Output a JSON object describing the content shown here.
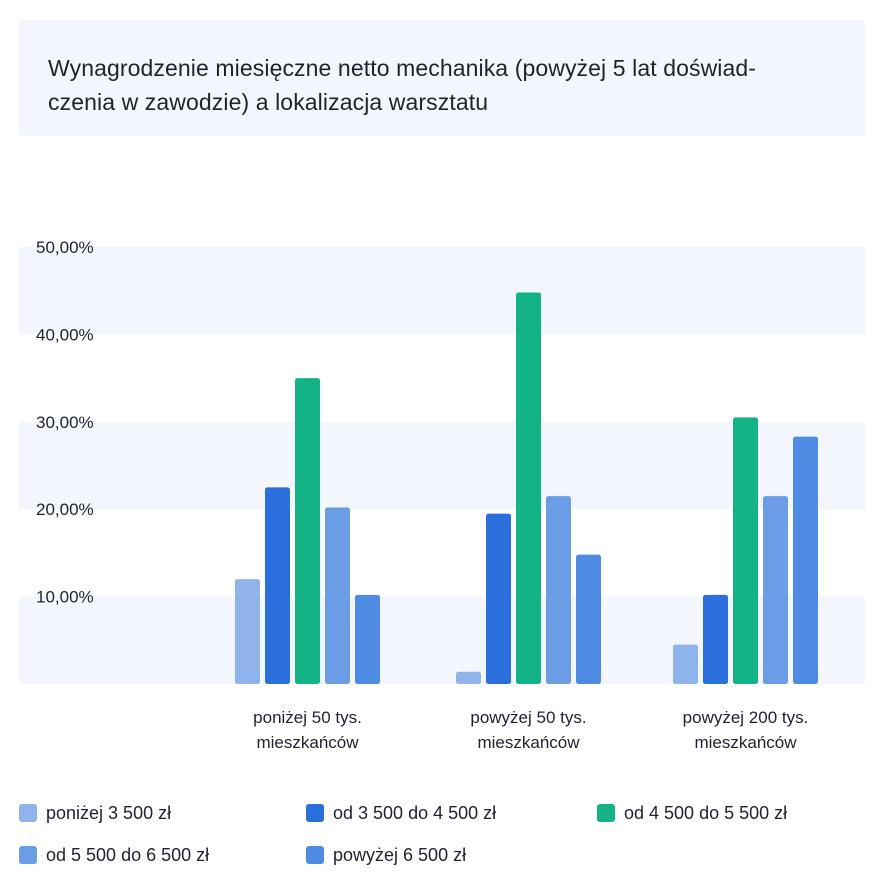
{
  "chart_data": {
    "type": "bar",
    "title": "Wynagrodzenie miesięczne netto mechanika (powyżej 5 lat doświadczenia w zawodzie) a lokalizacja warsztatu",
    "title_lines": [
      "Wynagrodzenie miesięczne netto mechanika (powyżej 5 lat doświad-",
      "czenia w zawodzie) a lokalizacja warsztatu"
    ],
    "categories": [
      [
        "poniżej 50 tys.",
        "mieszkańców"
      ],
      [
        "powyżej 50 tys.",
        "mieszkańców"
      ],
      [
        "powyżej 200 tys.",
        "mieszkańców"
      ]
    ],
    "series": [
      {
        "name": "poniżej 3 500 zł",
        "color": "#8fb4ec",
        "values": [
          12.0,
          1.4,
          4.5
        ]
      },
      {
        "name": "od 3 500 do 4 500 zł",
        "color": "#2a6fdc",
        "values": [
          22.5,
          19.5,
          10.2
        ]
      },
      {
        "name": "od 4 500 do 5 500 zł",
        "color": "#14b385",
        "values": [
          35.0,
          44.8,
          30.5
        ]
      },
      {
        "name": "od 5 500 do 6 500 zł",
        "color": "#6b9de6",
        "values": [
          20.2,
          21.5,
          21.5
        ]
      },
      {
        "name": "powyżej 6 500 zł",
        "color": "#4f8be3",
        "values": [
          10.2,
          14.8,
          28.3
        ]
      }
    ],
    "ylim": [
      0,
      50
    ],
    "y_ticks": [
      {
        "value": 10,
        "label": "10,00%"
      },
      {
        "value": 20,
        "label": "20,00%"
      },
      {
        "value": 30,
        "label": "30,00%"
      },
      {
        "value": 40,
        "label": "40,00%"
      },
      {
        "value": 50,
        "label": "50,00%"
      }
    ],
    "grid": "alternating horizontal bands",
    "legend_position": "bottom"
  }
}
